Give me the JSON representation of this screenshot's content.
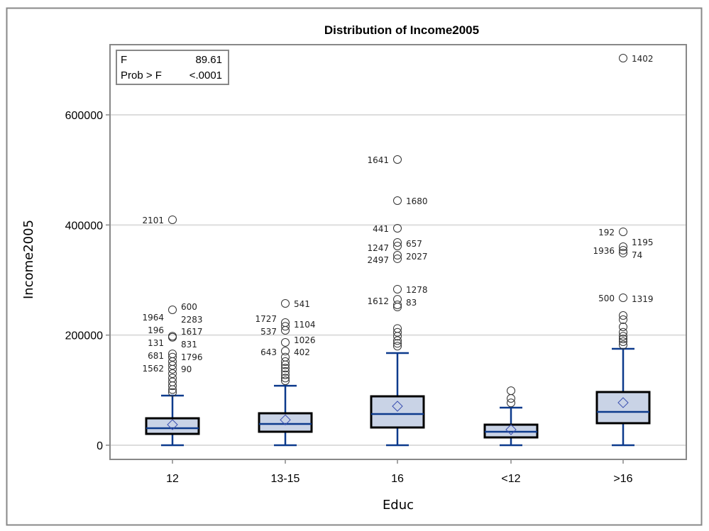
{
  "chart_data": {
    "type": "box",
    "title": "Distribution of Income2005",
    "xlabel": "Educ",
    "ylabel": "Income2005",
    "ylim": [
      0,
      700000
    ],
    "yticks": [
      0,
      200000,
      400000,
      600000
    ],
    "ytick_labels": [
      "0",
      "200000",
      "400000",
      "600000"
    ],
    "grid": true,
    "inset": {
      "rows": [
        [
          "F",
          "89.61"
        ],
        [
          "Prob > F",
          "<.0001"
        ]
      ],
      "placement": "top-left"
    },
    "colors": {
      "box_fill": "#c9d3e6",
      "line": "#0c3a8c",
      "box_edge": "#000000",
      "grid": "#dddddd",
      "frame": "#888888"
    },
    "groups": [
      {
        "category": "12",
        "min": 0,
        "q1": 20600,
        "median": 30900,
        "q3": 48900,
        "mean": 37300,
        "whisker_high": 90100,
        "outliers": [
          409500,
          245900,
          198000,
          196000,
          166000,
          160000,
          152000,
          145000,
          138000,
          130000,
          122000,
          115000,
          108000,
          101000,
          96000
        ],
        "labels": [
          {
            "id": "2101",
            "value": 409500,
            "side": "left"
          },
          {
            "id": "1964",
            "value": 233000,
            "side": "left"
          },
          {
            "id": "196",
            "value": 209900,
            "side": "left"
          },
          {
            "id": "131",
            "value": 186700,
            "side": "left"
          },
          {
            "id": "681",
            "value": 163500,
            "side": "left"
          },
          {
            "id": "1562",
            "value": 140300,
            "side": "left"
          },
          {
            "id": "600",
            "value": 252400,
            "side": "right"
          },
          {
            "id": "2283",
            "value": 229200,
            "side": "right"
          },
          {
            "id": "1617",
            "value": 207300,
            "side": "right"
          },
          {
            "id": "831",
            "value": 184100,
            "side": "right"
          },
          {
            "id": "1796",
            "value": 160900,
            "side": "right"
          },
          {
            "id": "90",
            "value": 139100,
            "side": "right"
          }
        ]
      },
      {
        "category": "13-15",
        "min": 0,
        "q1": 24500,
        "median": 38600,
        "q3": 58000,
        "mean": 46000,
        "whisker_high": 108000,
        "outliers": [
          257500,
          222700,
          216000,
          208600,
          186700,
          171000,
          160000,
          152000,
          146000,
          140000,
          134000,
          128000,
          122000,
          117000
        ],
        "labels": [
          {
            "id": "1727",
            "value": 230500,
            "side": "left"
          },
          {
            "id": "537",
            "value": 207300,
            "side": "left"
          },
          {
            "id": "643",
            "value": 170000,
            "side": "left"
          },
          {
            "id": "541",
            "value": 257500,
            "side": "right"
          },
          {
            "id": "1104",
            "value": 220200,
            "side": "right"
          },
          {
            "id": "1026",
            "value": 191900,
            "side": "right"
          },
          {
            "id": "402",
            "value": 170000,
            "side": "right"
          }
        ]
      },
      {
        "category": "16",
        "min": 0,
        "q1": 32200,
        "median": 56700,
        "q3": 88800,
        "mean": 70800,
        "whisker_high": 167400,
        "outliers": [
          518900,
          444200,
          394000,
          368300,
          361800,
          345000,
          338700,
          283300,
          265000,
          255000,
          251000,
          212000,
          205000,
          198000,
          190000,
          185000,
          180000
        ],
        "labels": [
          {
            "id": "1641",
            "value": 518900,
            "side": "left"
          },
          {
            "id": "441",
            "value": 394000,
            "side": "left"
          },
          {
            "id": "1247",
            "value": 359200,
            "side": "left"
          },
          {
            "id": "2497",
            "value": 337400,
            "side": "left"
          },
          {
            "id": "1612",
            "value": 262700,
            "side": "left"
          },
          {
            "id": "1680",
            "value": 444200,
            "side": "right"
          },
          {
            "id": "657",
            "value": 367000,
            "side": "right"
          },
          {
            "id": "2027",
            "value": 343800,
            "side": "right"
          },
          {
            "id": "1278",
            "value": 283300,
            "side": "right"
          },
          {
            "id": "83",
            "value": 260100,
            "side": "right"
          }
        ]
      },
      {
        "category": "<12",
        "min": 0,
        "q1": 14200,
        "median": 24500,
        "q3": 37300,
        "mean": 28300,
        "whisker_high": 68200,
        "outliers": [
          99000,
          85000,
          77000
        ],
        "labels": []
      },
      {
        "category": ">16",
        "min": 0,
        "q1": 40000,
        "median": 60500,
        "q3": 96600,
        "mean": 77300,
        "whisker_high": 175100,
        "outliers": [
          703000,
          387600,
          360500,
          354000,
          349000,
          267800,
          235600,
          228000,
          215000,
          205000,
          198000,
          193000,
          188000,
          182000
        ],
        "labels": [
          {
            "id": "192",
            "value": 387600,
            "side": "left"
          },
          {
            "id": "1936",
            "value": 354100,
            "side": "left"
          },
          {
            "id": "500",
            "value": 267800,
            "side": "left"
          },
          {
            "id": "1402",
            "value": 703000,
            "side": "right"
          },
          {
            "id": "1195",
            "value": 369500,
            "side": "right"
          },
          {
            "id": "74",
            "value": 346400,
            "side": "right"
          },
          {
            "id": "1319",
            "value": 266500,
            "side": "right"
          }
        ]
      }
    ]
  }
}
